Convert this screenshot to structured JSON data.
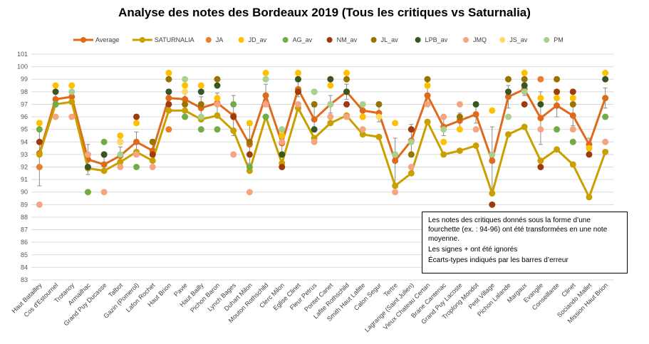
{
  "chart_data": {
    "type": "line",
    "title": "Analyse des notes des Bordeaux 2019 (Tous les critiques vs Saturnalia)",
    "ylim": [
      83,
      101
    ],
    "yticks": [
      83,
      84,
      85,
      86,
      87,
      88,
      89,
      90,
      91,
      92,
      93,
      94,
      95,
      96,
      97,
      98,
      99,
      100,
      101
    ],
    "grid": true,
    "legend_position": "top",
    "categories": [
      "Haut Batailley",
      "Cos d'Estournel",
      "Trotanoy",
      "Armailhac",
      "Grand Puy Ducasse",
      "Talbot",
      "Gazin (Pomerol)",
      "Lafon Rochet",
      "Haut Brion",
      "Pavie",
      "Haut Bailly",
      "Pichon Baron",
      "Lynch Bages",
      "Duhart Milon",
      "Mouton Rothschild",
      "Clerc Milon",
      "Eglise Clinet",
      "Fleur Petrus",
      "Pontet Canet",
      "Lafite Rothschild",
      "Smith Haut Lafitte",
      "Calon Segur",
      "Tertre",
      "Lagrange (Saint Julien)",
      "Vieux Chateau Certan",
      "Brane Cantenac",
      "Grand Puy Lacoste",
      "Troplong Mondot",
      "Petit Village",
      "Pichon Lalande",
      "Margaux",
      "Evangile",
      "Conseillante",
      "Clinet",
      "Sociando Mallet",
      "Mission Haut Brion"
    ],
    "series": [
      {
        "name": "Average",
        "kind": "line",
        "color": "#E06A1B",
        "values": [
          93.1,
          97.4,
          97.6,
          92.6,
          92.2,
          92.9,
          94.0,
          93.3,
          97.5,
          97.4,
          96.7,
          97.1,
          96.1,
          93.8,
          97.7,
          93.9,
          98.2,
          95.8,
          97.0,
          98.0,
          96.5,
          96.3,
          92.5,
          94.1,
          97.7,
          95.2,
          95.7,
          96.2,
          92.5,
          97.6,
          98.2,
          95.9,
          96.9,
          96.1,
          93.8,
          97.5
        ],
        "error": [
          2.6,
          0.6,
          0.5,
          1.2,
          0.6,
          0.7,
          0.8,
          0.9,
          0.7,
          0.6,
          0.9,
          0.8,
          1.6,
          1.5,
          0.9,
          0.9,
          0.6,
          1.0,
          0.7,
          0.6,
          0.6,
          0.7,
          1.8,
          1.3,
          0.6,
          0.7,
          0.6,
          0.7,
          2.7,
          0.9,
          0.5,
          2.1,
          0.9,
          0.8,
          0.5,
          0.8
        ]
      },
      {
        "name": "SATURNALIA",
        "kind": "line",
        "color": "#C9A000",
        "values": [
          93.0,
          97.0,
          97.2,
          91.9,
          91.7,
          92.4,
          93.2,
          92.5,
          96.5,
          96.5,
          95.8,
          96.1,
          94.9,
          91.7,
          96.0,
          92.3,
          96.7,
          94.3,
          95.5,
          96.1,
          94.6,
          94.4,
          90.5,
          91.5,
          95.6,
          93.0,
          93.3,
          93.7,
          89.9,
          94.6,
          95.2,
          92.5,
          93.4,
          92.2,
          89.6,
          93.2
        ]
      },
      {
        "name": "JA",
        "kind": "marker",
        "color": "#E87E2E",
        "values": [
          92,
          null,
          null,
          null,
          null,
          null,
          null,
          null,
          95,
          null,
          null,
          null,
          null,
          null,
          null,
          null,
          null,
          null,
          null,
          null,
          null,
          null,
          null,
          null,
          null,
          null,
          null,
          null,
          null,
          null,
          null,
          99,
          null,
          null,
          null,
          null
        ]
      },
      {
        "name": "JD_av",
        "kind": "marker",
        "color": "#FFC000",
        "values": [
          95.5,
          98.5,
          98.5,
          null,
          null,
          94.5,
          95.5,
          null,
          99.5,
          98.5,
          98.5,
          97.5,
          null,
          95.5,
          99.5,
          94.5,
          99.5,
          97,
          98.5,
          99.5,
          96,
          null,
          95.5,
          null,
          98.5,
          94,
          95,
          97,
          96.5,
          99,
          99.5,
          97.5,
          97.5,
          97.5,
          93.5,
          99.5
        ]
      },
      {
        "name": "AG_av",
        "kind": "marker",
        "color": "#70AD47",
        "values": [
          95,
          97,
          null,
          90,
          94,
          null,
          92,
          null,
          null,
          96,
          95,
          95,
          97,
          92,
          96,
          null,
          null,
          98,
          null,
          null,
          null,
          null,
          93,
          null,
          null,
          null,
          null,
          null,
          null,
          null,
          null,
          null,
          95,
          94,
          null,
          96
        ]
      },
      {
        "name": "NM_av",
        "kind": "marker",
        "color": "#9E3A0C",
        "values": [
          94,
          null,
          null,
          null,
          93,
          94,
          96,
          93,
          97,
          null,
          null,
          null,
          96,
          93,
          null,
          92,
          98,
          null,
          null,
          97,
          null,
          null,
          null,
          95,
          null,
          null,
          null,
          null,
          89,
          null,
          97,
          92,
          98,
          98,
          93,
          null
        ]
      },
      {
        "name": "JL_av",
        "kind": "marker",
        "color": "#997300",
        "values": [
          null,
          null,
          null,
          null,
          null,
          null,
          null,
          94,
          99,
          97,
          97,
          99,
          null,
          94,
          null,
          null,
          null,
          97,
          null,
          99,
          null,
          97,
          null,
          93,
          99,
          null,
          96,
          null,
          null,
          99,
          99,
          null,
          99,
          97,
          null,
          null
        ]
      },
      {
        "name": "LPB_av",
        "kind": "marker",
        "color": "#375623",
        "values": [
          null,
          98,
          null,
          92,
          93,
          null,
          null,
          null,
          98,
          null,
          98,
          98.5,
          null,
          null,
          null,
          93,
          99,
          95,
          99,
          98,
          null,
          null,
          null,
          null,
          null,
          null,
          null,
          97,
          null,
          98,
          98.5,
          97,
          null,
          null,
          null,
          99
        ]
      },
      {
        "name": "JMQ",
        "kind": "marker",
        "color": "#F4A582",
        "values": [
          89,
          96,
          96,
          93,
          90,
          92,
          93,
          92,
          null,
          null,
          null,
          97,
          93,
          90,
          97,
          94,
          97,
          94,
          96,
          96,
          95,
          null,
          90,
          92,
          97,
          96,
          97,
          95,
          null,
          null,
          null,
          95,
          null,
          95,
          null,
          94
        ]
      },
      {
        "name": "JS_av",
        "kind": "marker",
        "color": "#FFD966",
        "values": [
          null,
          null,
          null,
          null,
          null,
          94,
          null,
          null,
          null,
          98,
          null,
          null,
          null,
          null,
          null,
          null,
          null,
          null,
          null,
          null,
          null,
          96,
          null,
          null,
          null,
          null,
          null,
          null,
          null,
          null,
          null,
          null,
          null,
          null,
          null,
          null
        ]
      },
      {
        "name": "PM",
        "kind": "marker",
        "color": "#A9D18E",
        "values": [
          null,
          null,
          98,
          null,
          null,
          93,
          null,
          null,
          null,
          99,
          96,
          null,
          null,
          null,
          99,
          95,
          null,
          98,
          97,
          null,
          97,
          null,
          93,
          94,
          null,
          95,
          null,
          null,
          93,
          96,
          98,
          null,
          null,
          null,
          null,
          null
        ]
      }
    ]
  },
  "note": {
    "lines": [
      "Les notes des critiques donnés sous la forme d’une fourchette (ex. : 94-96) ont été transformées en une note moyenne.",
      "Les signes + ont été ignorés",
      "Écarts-types indiqués par les barres d’erreur"
    ]
  }
}
